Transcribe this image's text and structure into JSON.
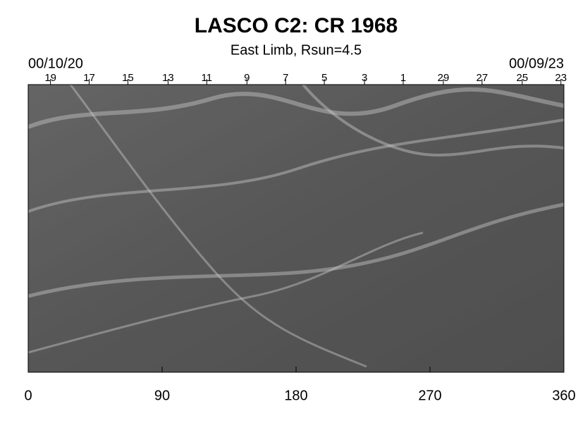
{
  "chart_data": {
    "type": "image",
    "title": "LASCO C2: CR 1968",
    "subtitle": "East Limb, Rsun=4.5",
    "annotations": [
      "00/10/20",
      "00/09/23"
    ],
    "xlim": [
      0,
      360
    ],
    "xticks": [
      0,
      90,
      180,
      270,
      360
    ],
    "top_ticks": [
      {
        "value": 15,
        "label": "19"
      },
      {
        "value": 41,
        "label": "17"
      },
      {
        "value": 67,
        "label": "15"
      },
      {
        "value": 94,
        "label": "13"
      },
      {
        "value": 120,
        "label": "11"
      },
      {
        "value": 147,
        "label": "9"
      },
      {
        "value": 173,
        "label": "7"
      },
      {
        "value": 199,
        "label": "5"
      },
      {
        "value": 226,
        "label": "3"
      },
      {
        "value": 252,
        "label": "1"
      },
      {
        "value": 279,
        "label": "29"
      },
      {
        "value": 305,
        "label": "27"
      },
      {
        "value": 332,
        "label": "25"
      },
      {
        "value": 358,
        "label": "23"
      }
    ],
    "color": "#5a5a5a"
  }
}
